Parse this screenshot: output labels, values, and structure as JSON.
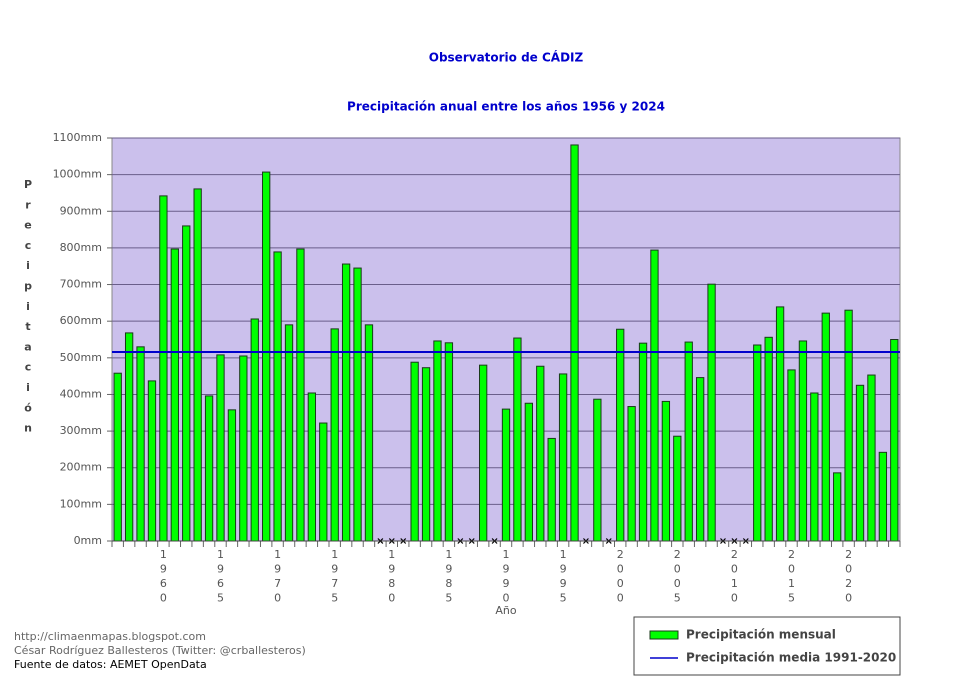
{
  "chart_data": {
    "type": "bar",
    "title": "Observatorio de CÁDIZ",
    "subtitle": "Precipitación anual entre los años 1956 y 2024",
    "y_label": "Precipitación",
    "x_label": "Año",
    "categories": [
      null,
      null,
      null,
      null,
      "1960",
      null,
      null,
      null,
      null,
      "1965",
      null,
      null,
      null,
      null,
      "1970",
      null,
      null,
      null,
      null,
      "1975",
      null,
      null,
      null,
      null,
      "1980",
      null,
      null,
      null,
      null,
      "1985",
      null,
      null,
      null,
      null,
      "1990",
      null,
      null,
      null,
      null,
      "1995",
      null,
      null,
      null,
      null,
      "2000",
      null,
      null,
      null,
      null,
      "2005",
      null,
      null,
      null,
      null,
      "2010",
      null,
      null,
      null,
      null,
      "2015",
      null,
      null,
      null,
      null,
      "2020",
      null,
      null,
      null,
      null
    ],
    "series": [
      {
        "name": "Precipitación mensual",
        "color": "#00ff00",
        "values": [
          458,
          568,
          530,
          437,
          942,
          797,
          860,
          961,
          396,
          508,
          358,
          505,
          606,
          1007,
          789,
          590,
          797,
          404,
          322,
          579,
          756,
          745,
          590,
          null,
          null,
          null,
          488,
          473,
          546,
          541,
          null,
          null,
          480,
          null,
          360,
          554,
          376,
          477,
          280,
          456,
          1081,
          null,
          387,
          null,
          578,
          367,
          540,
          794,
          381,
          286,
          543,
          446,
          701,
          null,
          null,
          null,
          535,
          556,
          639,
          467,
          546,
          404,
          622,
          186,
          630,
          425,
          453,
          242,
          550
        ]
      }
    ],
    "mean": {
      "name": "Precipitación media 1991-2020",
      "value": 516,
      "color": "#0000cc"
    },
    "ylim": [
      0,
      1100
    ],
    "yticks": [
      {
        "value": 0,
        "label": "0mm"
      },
      {
        "value": 100,
        "label": "100mm"
      },
      {
        "value": 200,
        "label": "200mm"
      },
      {
        "value": 300,
        "label": "300mm"
      },
      {
        "value": 400,
        "label": "400mm"
      },
      {
        "value": 500,
        "label": "500mm"
      },
      {
        "value": 600,
        "label": "600mm"
      },
      {
        "value": 700,
        "label": "700mm"
      },
      {
        "value": 800,
        "label": "800mm"
      },
      {
        "value": 900,
        "label": "900mm"
      },
      {
        "value": 1000,
        "label": "1000mm"
      },
      {
        "value": 1100,
        "label": "1100mm"
      }
    ],
    "grid": true,
    "footer": [
      "http://climaenmapas.blogspot.com",
      "César Rodríguez Ballesteros (Twitter: @crballesteros)",
      "Fuente de datos: AEMET OpenData"
    ]
  }
}
